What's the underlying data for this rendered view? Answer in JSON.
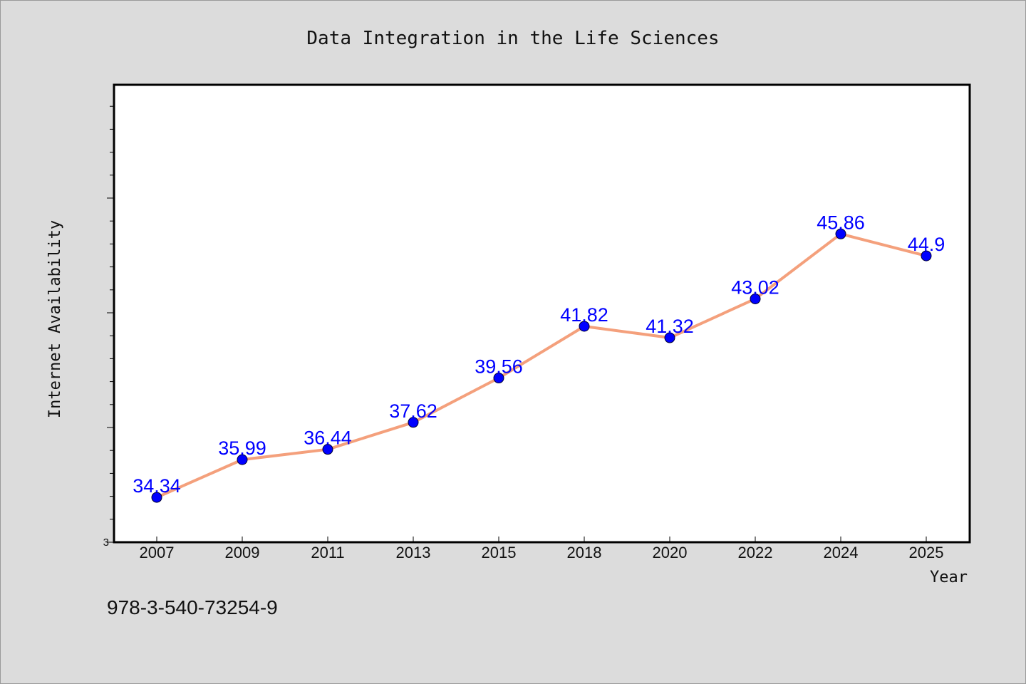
{
  "chart_data": {
    "type": "line",
    "title": "Data Integration in the Life Sciences",
    "xlabel": "Year",
    "ylabel": "Internet Availability",
    "categories": [
      "2007",
      "2009",
      "2011",
      "2013",
      "2015",
      "2018",
      "2020",
      "2022",
      "2024",
      "2025"
    ],
    "series": [
      {
        "values": [
          34.34,
          35.99,
          36.44,
          37.62,
          39.56,
          41.82,
          41.32,
          43.02,
          45.86,
          44.9
        ],
        "data_labels": [
          "34.34",
          "35.99",
          "36.44",
          "37.62",
          "39.56",
          "41.82",
          "41.32",
          "43.02",
          "45.86",
          "44.9"
        ]
      }
    ],
    "y_tick_label": "3",
    "ylim": [
      32.38,
      52.38
    ],
    "grid": false,
    "legend": "none",
    "colors": {
      "line": "#f4a07c",
      "marker": "#0000ff",
      "data_label": "#0000ff",
      "plot_background": "#ffffff",
      "page_background": "#dcdcdc"
    }
  },
  "footer": {
    "identifier": "978-3-540-73254-9"
  }
}
